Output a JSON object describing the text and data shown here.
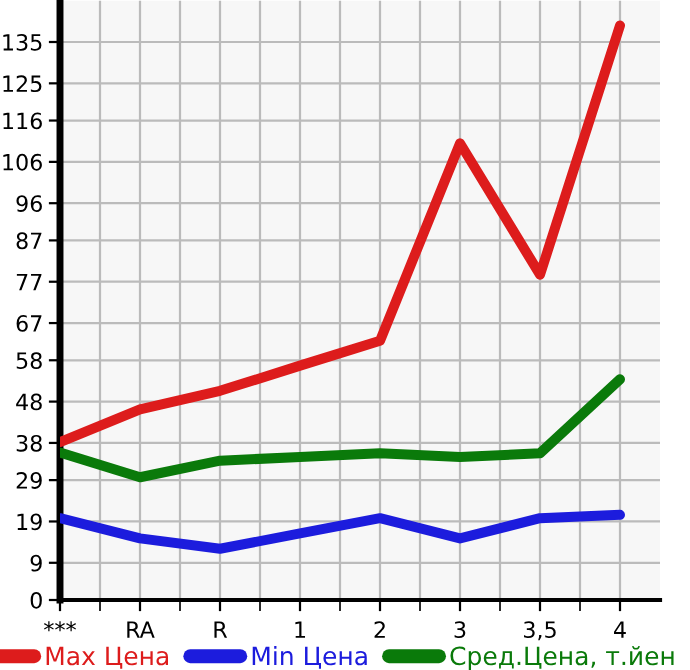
{
  "chart_data": {
    "type": "line",
    "categories": [
      "***",
      "RA",
      "R",
      "1",
      "2",
      "3",
      "3,5",
      "4"
    ],
    "series": [
      {
        "name": "Max Цена",
        "color": "#dd1c1c",
        "values": [
          38.2,
          46.1,
          50.6,
          56.7,
          62.7,
          110.5,
          78.7,
          139
        ]
      },
      {
        "name": "Min Цена",
        "color": "#1c1cdd",
        "values": [
          19.8,
          14.9,
          12.4,
          16.1,
          19.8,
          14.9,
          19.8,
          20.6
        ]
      },
      {
        "name": "Сред.Цена, т.йен",
        "color": "#0a7a0a",
        "values": [
          35.7,
          29.7,
          33.7,
          34.6,
          35.5,
          34.6,
          35.5,
          53.4
        ]
      }
    ],
    "ylim": [
      0,
      145
    ],
    "yticks": [
      0,
      9,
      19,
      29,
      38,
      48,
      58,
      67,
      77,
      87,
      96,
      106,
      116,
      125,
      135
    ],
    "grid": true,
    "legend": "bottom",
    "marker": "none",
    "line_style": "solid"
  }
}
